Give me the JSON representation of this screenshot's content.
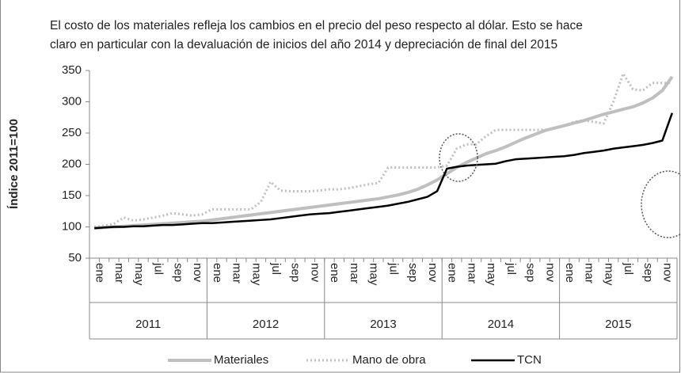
{
  "chart_data": {
    "type": "line",
    "subtitle": [
      "El costo de los materiales refleja los cambios en el precio del peso respecto al dólar. Esto se hace",
      "claro en particular con la devaluación de inicios del año 2014 y depreciación de final del 2015"
    ],
    "y_label": "Índice 2011=100",
    "categories": [
      "ene",
      null,
      "mar",
      null,
      "may",
      null,
      "jul",
      null,
      "sep",
      null,
      "nov",
      null,
      "ene",
      null,
      "mar",
      null,
      "may",
      null,
      "jul",
      null,
      "sep",
      null,
      "nov",
      null,
      "ene",
      null,
      "mar",
      null,
      "may",
      null,
      "jul",
      null,
      "sep",
      null,
      "nov",
      null,
      "ene",
      null,
      "mar",
      null,
      "may",
      null,
      "jul",
      null,
      "sep",
      null,
      "nov",
      null,
      "ene",
      null,
      "mar",
      null,
      "may",
      null,
      "jul",
      null,
      "sep",
      null,
      "nov",
      null
    ],
    "years": [
      "2011",
      "2012",
      "2013",
      "2014",
      "2015"
    ],
    "ylim": [
      50,
      350
    ],
    "yticks": [
      50,
      100,
      150,
      200,
      250,
      300,
      350
    ],
    "grid": false,
    "legend": "bottom",
    "series": [
      {
        "name": "Materiales",
        "color": "#bfbfbf",
        "style": "solid",
        "width": 4,
        "values": [
          98,
          99,
          100,
          101,
          102,
          103,
          104,
          105,
          106,
          107,
          108,
          109,
          111,
          113,
          115,
          117,
          119,
          121,
          123,
          125,
          127,
          129,
          131,
          133,
          135,
          137,
          139,
          141,
          143,
          145,
          148,
          151,
          155,
          160,
          167,
          175,
          185,
          195,
          203,
          210,
          217,
          222,
          228,
          235,
          242,
          248,
          254,
          258,
          262,
          266,
          270,
          275,
          280,
          284,
          288,
          292,
          298,
          306,
          318,
          340
        ]
      },
      {
        "name": "Mano de obra",
        "color": "#bfbfbf",
        "style": "dotted",
        "width": 3,
        "values": [
          100,
          102,
          105,
          115,
          110,
          112,
          115,
          118,
          122,
          120,
          118,
          120,
          128,
          128,
          128,
          128,
          128,
          140,
          172,
          158,
          157,
          157,
          157,
          158,
          160,
          160,
          162,
          165,
          168,
          170,
          195,
          195,
          195,
          195,
          195,
          195,
          198,
          225,
          232,
          232,
          245,
          255,
          255,
          255,
          255,
          255,
          255,
          258,
          262,
          268,
          270,
          268,
          265,
          300,
          345,
          320,
          318,
          330,
          330,
          330
        ]
      },
      {
        "name": "TCN",
        "color": "#000000",
        "style": "solid",
        "width": 2.5,
        "values": [
          98,
          99,
          100,
          100,
          101,
          101,
          102,
          103,
          103,
          104,
          105,
          106,
          106,
          107,
          108,
          109,
          110,
          111,
          112,
          114,
          116,
          118,
          120,
          121,
          122,
          124,
          126,
          128,
          130,
          132,
          134,
          137,
          140,
          144,
          148,
          157,
          193,
          196,
          198,
          199,
          200,
          201,
          205,
          208,
          209,
          210,
          211,
          212,
          213,
          215,
          218,
          220,
          222,
          225,
          227,
          229,
          231,
          234,
          238,
          282
        ]
      }
    ]
  }
}
